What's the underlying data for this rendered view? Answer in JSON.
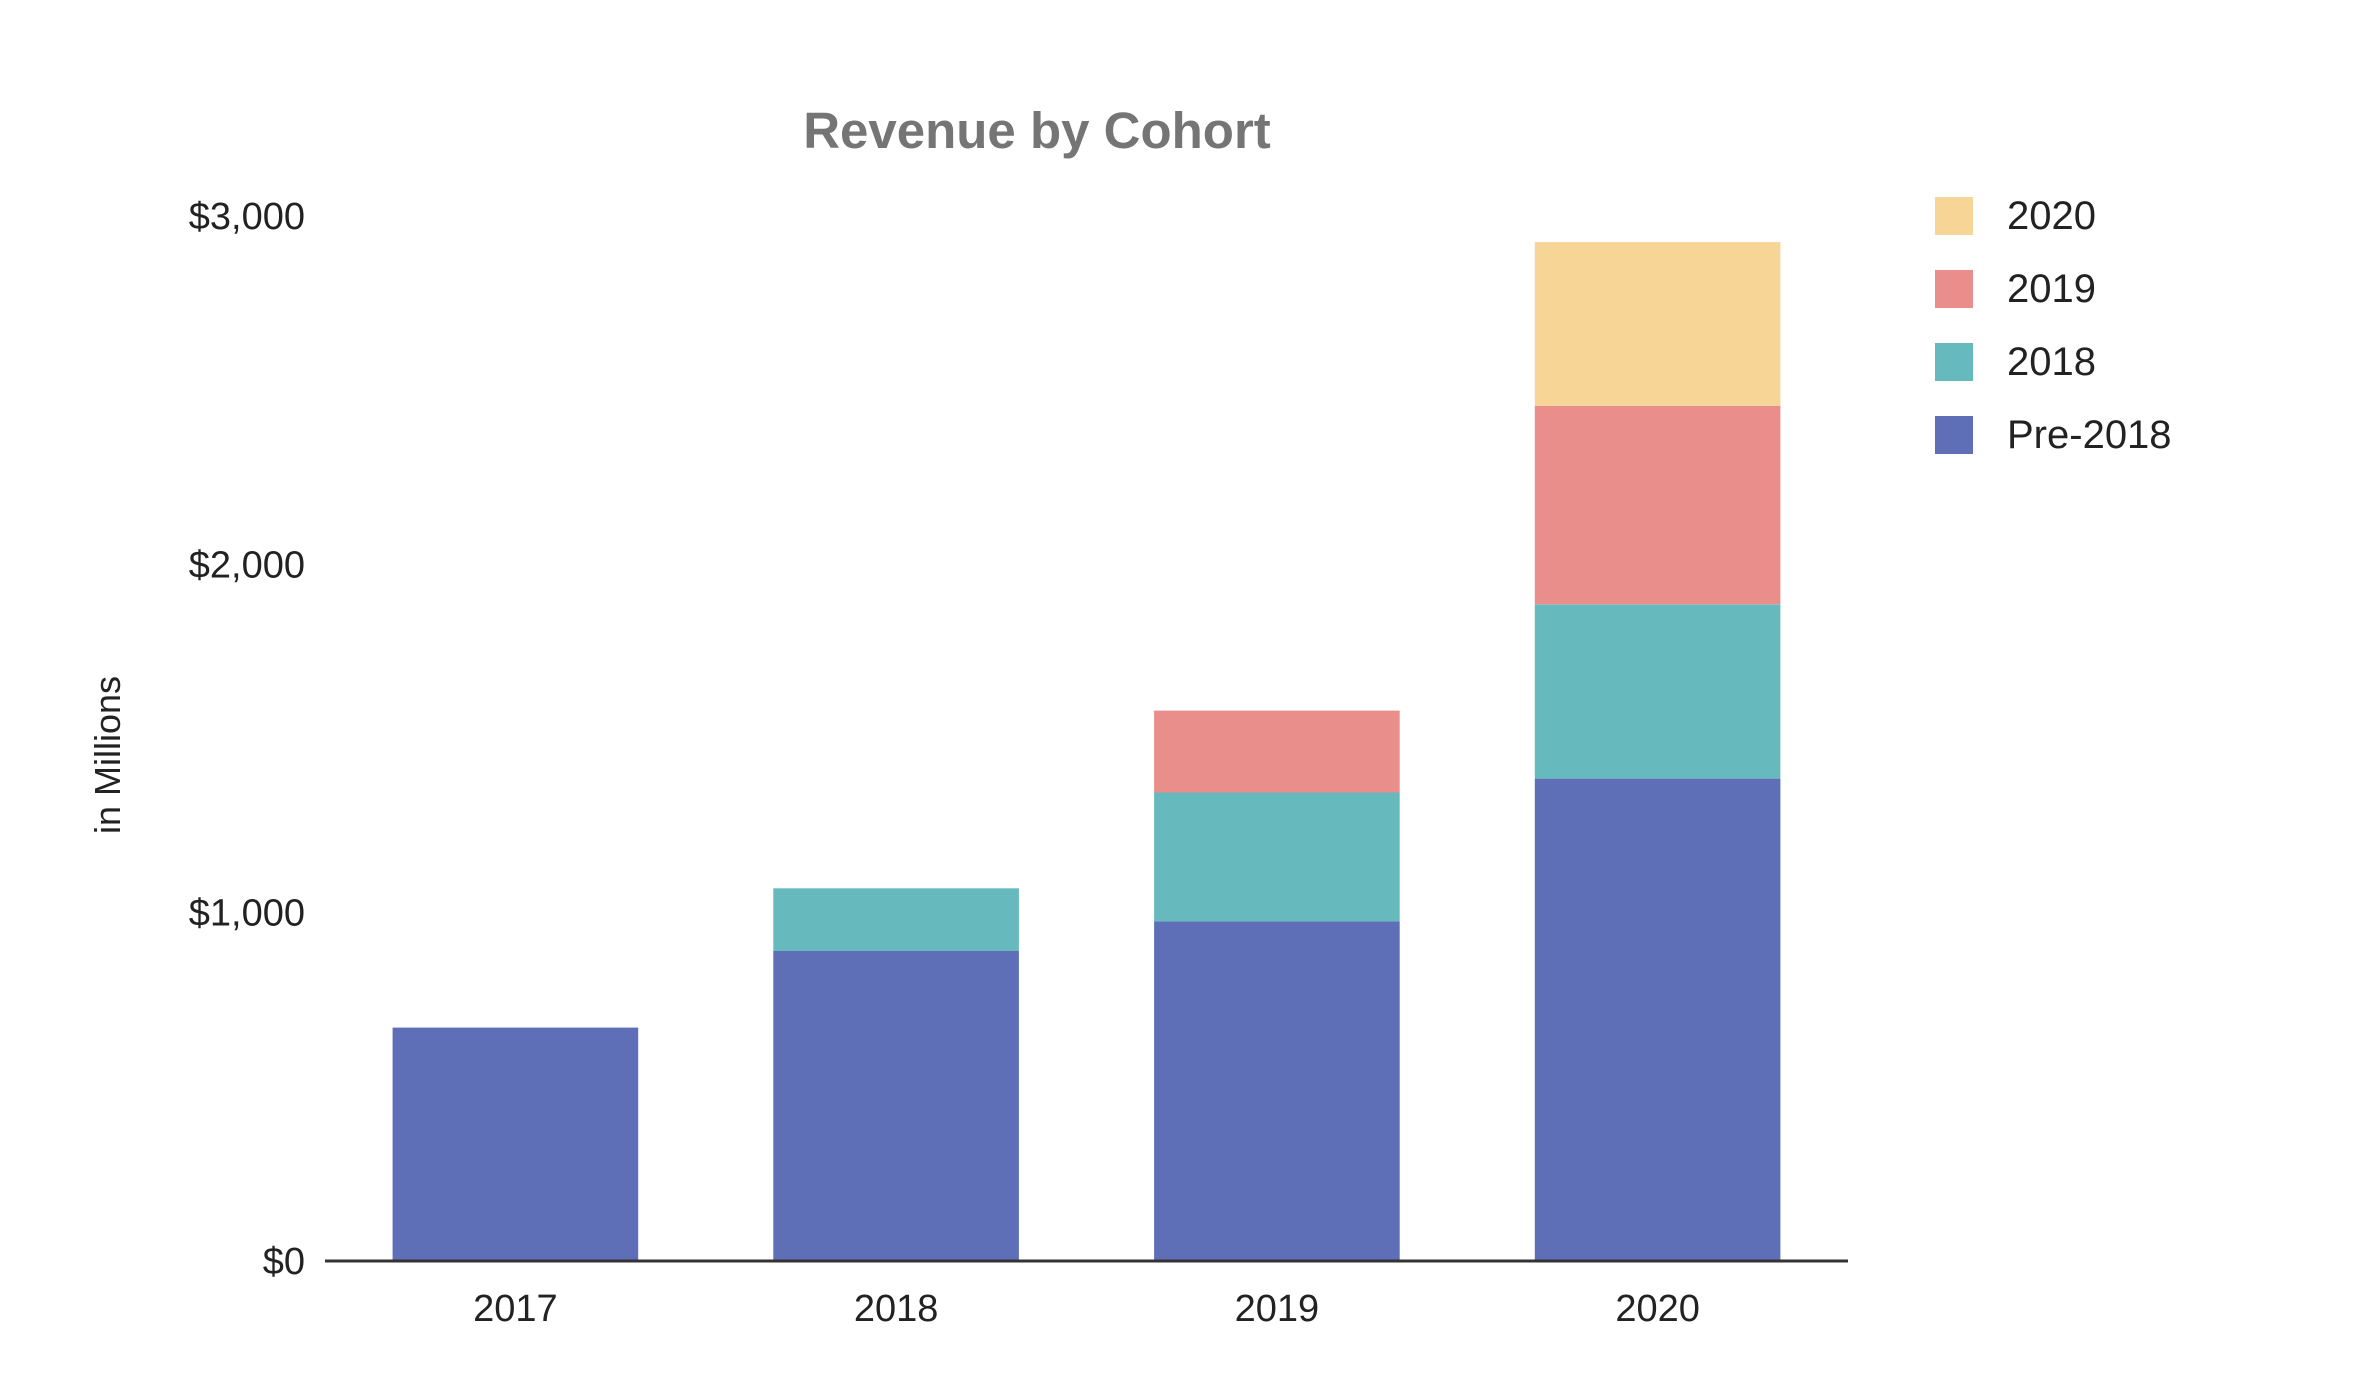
{
  "chart_data": {
    "type": "bar",
    "stacked": true,
    "title": "Revenue by Cohort",
    "xlabel": "",
    "ylabel": "in Millions",
    "categories": [
      "2017",
      "2018",
      "2019",
      "2020"
    ],
    "ylim": [
      0,
      3000
    ],
    "yticks": [
      0,
      1000,
      2000,
      3000
    ],
    "ytick_labels": [
      "$0",
      "$1,000",
      "$2,000",
      "$3,000"
    ],
    "grid": false,
    "legend_position": "right",
    "series": [
      {
        "name": "Pre-2018",
        "color": "#5E6FB8",
        "values": [
          670,
          890,
          975,
          1385
        ]
      },
      {
        "name": "2018",
        "color": "#66B9BD",
        "values": [
          0,
          180,
          370,
          500
        ]
      },
      {
        "name": "2019",
        "color": "#EA8E8C",
        "values": [
          0,
          0,
          235,
          570
        ]
      },
      {
        "name": "2020",
        "color": "#F7D597",
        "values": [
          0,
          0,
          0,
          470
        ]
      }
    ]
  }
}
